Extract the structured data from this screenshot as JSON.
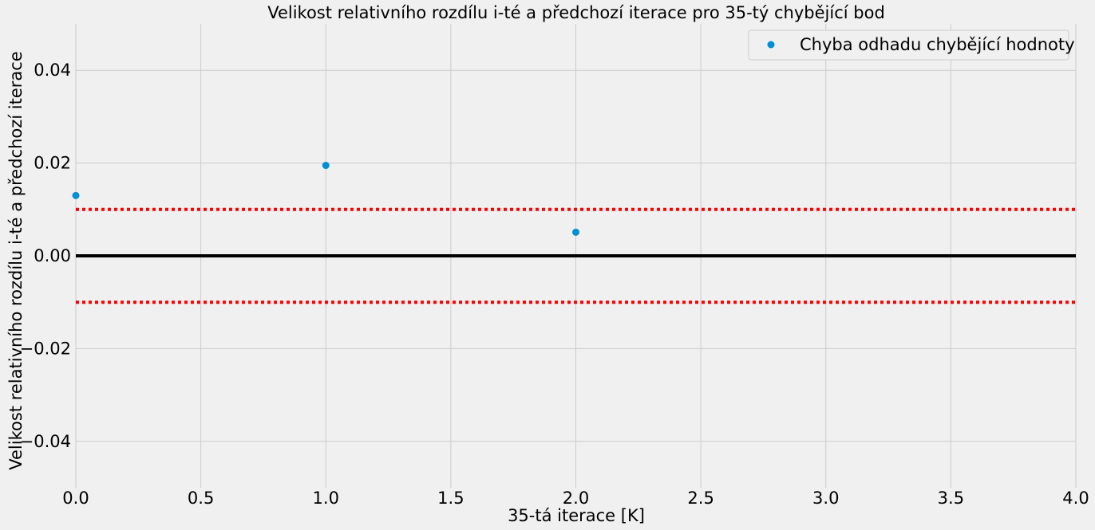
{
  "chart_data": {
    "type": "scatter",
    "title": "Velikost relativního rozdílu i-té a předchozí iterace pro 35-tý chybějící bod",
    "xlabel": "35-tá iterace [K]",
    "ylabel": "Velikost relativního rozdílu i-té a předchozí iterace",
    "xlim": [
      0,
      4
    ],
    "ylim": [
      -0.05,
      0.05
    ],
    "xticks": [
      0,
      0.5,
      1,
      1.5,
      2,
      2.5,
      3,
      3.5,
      4
    ],
    "xtick_labels": [
      "0.0",
      "0.5",
      "1.0",
      "1.5",
      "2.0",
      "2.5",
      "3.0",
      "3.5",
      "4.0"
    ],
    "yticks": [
      -0.04,
      -0.02,
      0,
      0.02,
      0.04
    ],
    "ytick_labels": [
      "−0.04",
      "−0.02",
      "0.00",
      "0.02",
      "0.04"
    ],
    "grid": true,
    "legend_position": "top-right",
    "series": [
      {
        "name": "Chyba odhadu chybějící hodnoty",
        "color": "#008fd5",
        "x": [
          0,
          1,
          2
        ],
        "y": [
          0.013,
          0.0195,
          0.0051
        ]
      }
    ],
    "reference_lines": [
      {
        "y": 0.01,
        "style": "dotted",
        "color": "#ff0000"
      },
      {
        "y": -0.01,
        "style": "dotted",
        "color": "#ff0000"
      },
      {
        "y": 0,
        "style": "solid",
        "color": "#000000"
      }
    ]
  }
}
